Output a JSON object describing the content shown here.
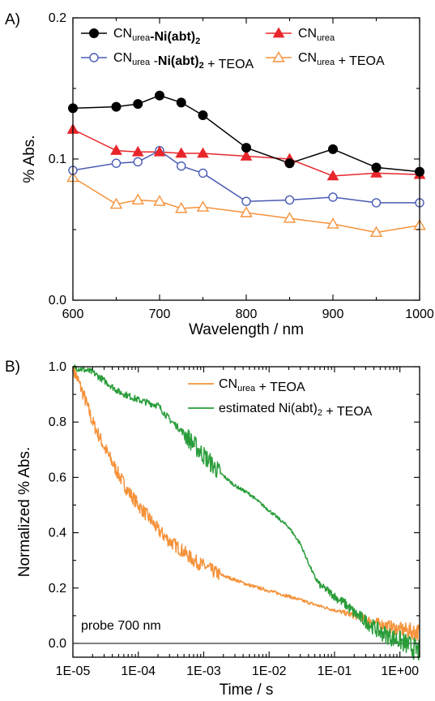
{
  "chart_data": [
    {
      "panel_label": "A)",
      "type": "line",
      "xlabel": "Wavelength / nm",
      "ylabel": "% Abs.",
      "xlim": [
        600,
        1000
      ],
      "ylim": [
        0.0,
        0.2
      ],
      "xticks": [
        "600",
        "700",
        "800",
        "900",
        "1000"
      ],
      "yticks": [
        "0.0",
        "0.1",
        "0.2"
      ],
      "legend": {
        "placement": "top",
        "columns": 2
      },
      "series": [
        {
          "name": "CNurea-Ni(abt)2",
          "legend_parts": [
            {
              "text": "CN",
              "style": "normal"
            },
            {
              "text": "urea",
              "style": "sub"
            },
            {
              "text": "-Ni(abt)",
              "style": "bold"
            },
            {
              "text": "2",
              "style": "boldsub"
            }
          ],
          "color": "#000000",
          "marker": "filled-circle",
          "x": [
            600,
            650,
            675,
            700,
            725,
            750,
            800,
            850,
            900,
            950,
            1000
          ],
          "y": [
            0.136,
            0.137,
            0.139,
            0.145,
            0.14,
            0.131,
            0.108,
            0.097,
            0.107,
            0.094,
            0.091
          ]
        },
        {
          "name": "CNurea",
          "legend_parts": [
            {
              "text": "CN",
              "style": "normal"
            },
            {
              "text": "urea",
              "style": "sub"
            }
          ],
          "color": "#e8262b",
          "marker": "filled-triangle",
          "x": [
            600,
            650,
            675,
            700,
            725,
            750,
            800,
            850,
            900,
            950,
            1000
          ],
          "y": [
            0.121,
            0.106,
            0.105,
            0.105,
            0.104,
            0.104,
            0.102,
            0.1,
            0.088,
            0.09,
            0.089
          ]
        },
        {
          "name": "CNurea-Ni(abt)2 + TEOA",
          "legend_parts": [
            {
              "text": "CN",
              "style": "normal"
            },
            {
              "text": "urea",
              "style": "sub"
            },
            {
              "text": " -",
              "style": "normal"
            },
            {
              "text": "Ni(abt)",
              "style": "bold"
            },
            {
              "text": "2",
              "style": "boldsub"
            },
            {
              "text": " + TEOA",
              "style": "normal"
            }
          ],
          "color": "#4a5bb5",
          "marker": "open-circle",
          "x": [
            600,
            650,
            675,
            700,
            725,
            750,
            800,
            850,
            900,
            950,
            1000
          ],
          "y": [
            0.092,
            0.097,
            0.098,
            0.106,
            0.095,
            0.09,
            0.07,
            0.071,
            0.073,
            0.069,
            0.069
          ]
        },
        {
          "name": "CNurea + TEOA",
          "legend_parts": [
            {
              "text": "CN",
              "style": "normal"
            },
            {
              "text": "urea",
              "style": "sub"
            },
            {
              "text": " + TEOA",
              "style": "normal"
            }
          ],
          "color": "#f5923a",
          "marker": "open-triangle",
          "x": [
            600,
            650,
            675,
            700,
            725,
            750,
            800,
            850,
            900,
            950,
            1000
          ],
          "y": [
            0.087,
            0.068,
            0.071,
            0.07,
            0.065,
            0.066,
            0.062,
            0.058,
            0.054,
            0.048,
            0.053
          ]
        }
      ]
    },
    {
      "panel_label": "B)",
      "type": "line",
      "xlabel": "Time / s",
      "ylabel": "Normalized % Abs.",
      "xscale": "log",
      "xlim": [
        1e-05,
        2
      ],
      "ylim": [
        -0.05,
        1.0
      ],
      "xticks": [
        "1E-05",
        "1E-04",
        "1E-03",
        "1E-02",
        "1E-01",
        "1E+00"
      ],
      "yticks": [
        "0.0",
        "0.2",
        "0.4",
        "0.6",
        "0.8",
        "1.0"
      ],
      "annotation": "probe 700 nm",
      "legend": {
        "placement": "top-right"
      },
      "series": [
        {
          "name": "CNurea + TEOA",
          "legend_parts": [
            {
              "text": "CN",
              "style": "normal"
            },
            {
              "text": "urea",
              "style": "sub"
            },
            {
              "text": " + TEOA",
              "style": "normal"
            }
          ],
          "color": "#f5923a",
          "x": [
            1e-05,
            1.5e-05,
            2e-05,
            3e-05,
            5e-05,
            7e-05,
            0.0001,
            0.00015,
            0.0002,
            0.0003,
            0.0005,
            0.0007,
            0.001,
            0.0017,
            0.003,
            0.005,
            0.01,
            0.02,
            0.05,
            0.1,
            0.2,
            0.5,
            1,
            2
          ],
          "y": [
            1.0,
            0.89,
            0.8,
            0.71,
            0.61,
            0.55,
            0.5,
            0.45,
            0.41,
            0.37,
            0.33,
            0.3,
            0.28,
            0.25,
            0.23,
            0.21,
            0.19,
            0.17,
            0.14,
            0.12,
            0.1,
            0.07,
            0.05,
            0.04
          ],
          "noise": "strong-early"
        },
        {
          "name": "estimated Ni(abt)2 + TEOA",
          "legend_parts": [
            {
              "text": "estimated Ni(abt)",
              "style": "normal"
            },
            {
              "text": "2",
              "style": "sub"
            },
            {
              "text": " + TEOA",
              "style": "normal"
            }
          ],
          "color": "#2a9d3a",
          "x": [
            1e-05,
            2e-05,
            3e-05,
            5e-05,
            0.0001,
            0.0002,
            0.0003,
            0.0005,
            0.0007,
            0.001,
            0.0017,
            0.003,
            0.005,
            0.01,
            0.02,
            0.03,
            0.04,
            0.05,
            0.06,
            0.08,
            0.1,
            0.15,
            0.2,
            0.3,
            0.5,
            1,
            2
          ],
          "y": [
            1.0,
            0.98,
            0.95,
            0.91,
            0.88,
            0.86,
            0.81,
            0.76,
            0.72,
            0.68,
            0.62,
            0.57,
            0.54,
            0.48,
            0.42,
            0.36,
            0.29,
            0.24,
            0.21,
            0.19,
            0.17,
            0.14,
            0.11,
            0.08,
            0.04,
            0.01,
            -0.03
          ],
          "noise": "strong-mid"
        }
      ]
    }
  ]
}
